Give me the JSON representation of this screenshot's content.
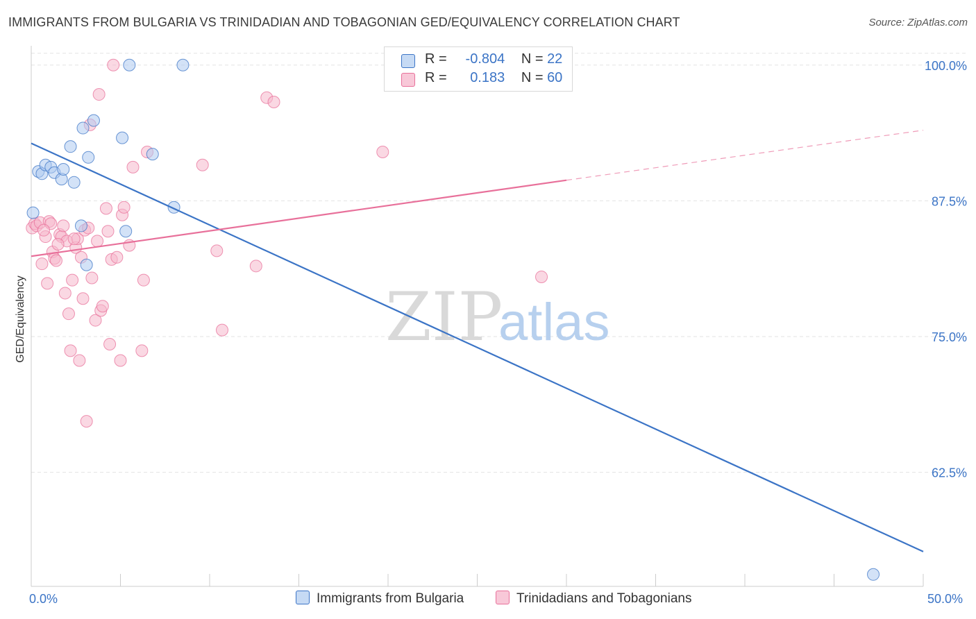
{
  "title": "IMMIGRANTS FROM BULGARIA VS TRINIDADIAN AND TOBAGONIAN GED/EQUIVALENCY CORRELATION CHART",
  "source": "Source: ZipAtlas.com",
  "watermark": {
    "zip": "ZIP",
    "atlas": "atlas"
  },
  "legend_top": {
    "rows": [
      {
        "r_label": "R =",
        "r_value": "-0.804",
        "n_label": "N =",
        "n_value": "22"
      },
      {
        "r_label": "R =",
        "r_value": "0.183",
        "n_label": "N =",
        "n_value": "60"
      }
    ]
  },
  "colors": {
    "blue": "#3b74c6",
    "blue_fill": "#aecbf0",
    "pink": "#e8709a",
    "pink_fill": "#f5b8cc",
    "grid": "#e3e3e3"
  },
  "chart_data": {
    "type": "scatter",
    "title": "IMMIGRANTS FROM BULGARIA VS TRINIDADIAN AND TOBAGONIAN GED/EQUIVALENCY CORRELATION CHART",
    "xlabel": "",
    "ylabel": "GED/Equivalency",
    "xlim": [
      0,
      50
    ],
    "ylim": [
      52,
      101.2
    ],
    "x_tick_labels": [
      "0.0%",
      "50.0%"
    ],
    "y_ticks": [
      62.5,
      75.0,
      87.5,
      100.0
    ],
    "y_tick_labels": [
      "62.5%",
      "75.0%",
      "87.5%",
      "100.0%"
    ],
    "grid": true,
    "legend_position": "bottom",
    "series": [
      {
        "name": "Immigrants from Bulgaria",
        "color": "blue",
        "trend": {
          "x": [
            0,
            50
          ],
          "y": [
            92.8,
            55.2
          ],
          "extrapolated_to": null
        },
        "points": [
          [
            0.1,
            86.4
          ],
          [
            0.4,
            90.2
          ],
          [
            0.6,
            90.0
          ],
          [
            0.8,
            90.8
          ],
          [
            1.1,
            90.6
          ],
          [
            1.3,
            90.1
          ],
          [
            1.7,
            89.5
          ],
          [
            1.8,
            90.4
          ],
          [
            2.2,
            92.5
          ],
          [
            2.4,
            89.2
          ],
          [
            2.8,
            85.2
          ],
          [
            3.2,
            91.5
          ],
          [
            2.9,
            94.2
          ],
          [
            3.5,
            94.9
          ],
          [
            5.1,
            93.3
          ],
          [
            5.3,
            84.7
          ],
          [
            5.5,
            100.0
          ],
          [
            6.8,
            91.8
          ],
          [
            8.0,
            86.9
          ],
          [
            8.5,
            100.0
          ],
          [
            3.1,
            81.6
          ],
          [
            47.2,
            53.1
          ]
        ]
      },
      {
        "name": "Trinidadians and Tobagonians",
        "color": "pink",
        "trend": {
          "x": [
            0,
            30
          ],
          "y": [
            82.4,
            89.4
          ],
          "dashed_to": [
            50,
            94.0
          ]
        },
        "points": [
          [
            0.05,
            85.0
          ],
          [
            0.2,
            85.4
          ],
          [
            0.3,
            85.2
          ],
          [
            0.5,
            85.5
          ],
          [
            0.6,
            81.7
          ],
          [
            0.8,
            84.2
          ],
          [
            0.9,
            79.9
          ],
          [
            1.0,
            85.6
          ],
          [
            1.1,
            85.4
          ],
          [
            1.2,
            82.8
          ],
          [
            1.3,
            82.2
          ],
          [
            1.4,
            82.0
          ],
          [
            1.6,
            84.4
          ],
          [
            1.7,
            84.2
          ],
          [
            1.8,
            85.2
          ],
          [
            1.9,
            79.0
          ],
          [
            2.0,
            83.8
          ],
          [
            2.1,
            77.1
          ],
          [
            2.2,
            73.7
          ],
          [
            2.3,
            80.2
          ],
          [
            2.5,
            83.2
          ],
          [
            2.6,
            84.0
          ],
          [
            2.7,
            72.8
          ],
          [
            2.8,
            82.3
          ],
          [
            2.9,
            78.5
          ],
          [
            3.0,
            84.8
          ],
          [
            3.1,
            67.2
          ],
          [
            3.2,
            85.0
          ],
          [
            3.3,
            94.5
          ],
          [
            3.4,
            80.4
          ],
          [
            3.6,
            76.5
          ],
          [
            3.8,
            97.3
          ],
          [
            3.9,
            77.4
          ],
          [
            4.0,
            77.8
          ],
          [
            4.2,
            86.8
          ],
          [
            4.3,
            84.7
          ],
          [
            4.4,
            74.3
          ],
          [
            4.5,
            82.1
          ],
          [
            4.6,
            100.0
          ],
          [
            4.8,
            82.3
          ],
          [
            5.0,
            72.8
          ],
          [
            5.1,
            86.2
          ],
          [
            5.2,
            86.9
          ],
          [
            5.5,
            83.4
          ],
          [
            5.7,
            90.6
          ],
          [
            6.2,
            73.7
          ],
          [
            6.3,
            80.2
          ],
          [
            6.5,
            92.0
          ],
          [
            9.6,
            90.8
          ],
          [
            10.4,
            82.9
          ],
          [
            10.7,
            75.6
          ],
          [
            12.6,
            81.5
          ],
          [
            13.2,
            97.0
          ],
          [
            13.6,
            96.6
          ],
          [
            19.7,
            92.0
          ],
          [
            28.6,
            80.5
          ],
          [
            0.7,
            84.8
          ],
          [
            1.5,
            83.5
          ],
          [
            2.4,
            84.0
          ],
          [
            3.7,
            83.8
          ]
        ]
      }
    ]
  },
  "bottom_legend": [
    {
      "label": "Immigrants from Bulgaria"
    },
    {
      "label": "Trinidadians and Tobagonians"
    }
  ]
}
